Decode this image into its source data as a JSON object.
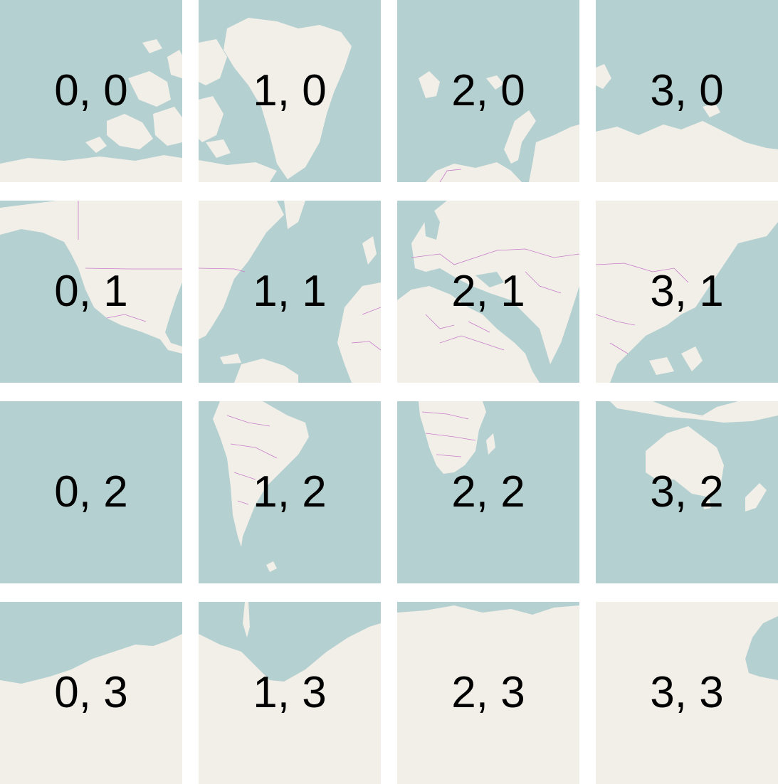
{
  "colors": {
    "water": "#b5d0d0",
    "land": "#f2efe9",
    "border": "#c77dc9",
    "gap": "#ffffff"
  },
  "tiles": [
    {
      "label": "0, 0",
      "x": 0,
      "y": 0
    },
    {
      "label": "1, 0",
      "x": 1,
      "y": 0
    },
    {
      "label": "2, 0",
      "x": 2,
      "y": 0
    },
    {
      "label": "3, 0",
      "x": 3,
      "y": 0
    },
    {
      "label": "0, 1",
      "x": 0,
      "y": 1
    },
    {
      "label": "1, 1",
      "x": 1,
      "y": 1
    },
    {
      "label": "2, 1",
      "x": 2,
      "y": 1
    },
    {
      "label": "3, 1",
      "x": 3,
      "y": 1
    },
    {
      "label": "0, 2",
      "x": 0,
      "y": 2
    },
    {
      "label": "1, 2",
      "x": 1,
      "y": 2
    },
    {
      "label": "2, 2",
      "x": 2,
      "y": 2
    },
    {
      "label": "3, 2",
      "x": 3,
      "y": 2
    },
    {
      "label": "0, 3",
      "x": 0,
      "y": 3
    },
    {
      "label": "1, 3",
      "x": 1,
      "y": 3
    },
    {
      "label": "2, 3",
      "x": 2,
      "y": 3
    },
    {
      "label": "3, 3",
      "x": 3,
      "y": 3
    }
  ]
}
